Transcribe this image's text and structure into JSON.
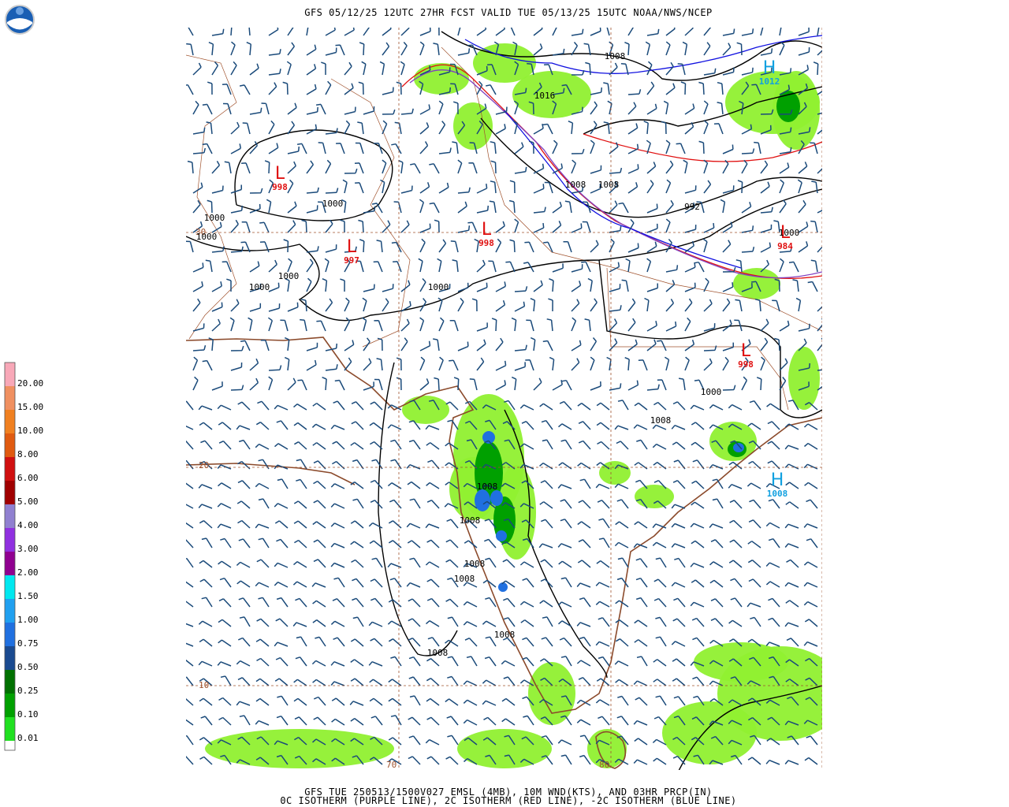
{
  "header": {
    "title": "GFS 05/12/25 12UTC 27HR FCST VALID TUE 05/13/25 15UTC NOAA/NWS/NCEP"
  },
  "footer": {
    "line1": "GFS TUE 250513/1500V027 EMSL (4MB), 10M WND(KTS), AND 03HR PRCP(IN)",
    "line2": "0C ISOTHERM (PURPLE LINE), 2C ISOTHERM (RED LINE), -2C ISOTHERM (BLUE LINE)"
  },
  "legend": {
    "items": [
      {
        "label": "20.00",
        "color": "#f8a8b8"
      },
      {
        "label": "15.00",
        "color": "#f09060"
      },
      {
        "label": "10.00",
        "color": "#f08020"
      },
      {
        "label": "8.00",
        "color": "#e05a10"
      },
      {
        "label": "6.00",
        "color": "#d01010"
      },
      {
        "label": "5.00",
        "color": "#a00000"
      },
      {
        "label": "4.00",
        "color": "#9080d0"
      },
      {
        "label": "3.00",
        "color": "#9030e0"
      },
      {
        "label": "2.00",
        "color": "#900090"
      },
      {
        "label": "1.50",
        "color": "#00e8f0"
      },
      {
        "label": "1.00",
        "color": "#20a0f0"
      },
      {
        "label": "0.75",
        "color": "#2070e0"
      },
      {
        "label": "0.50",
        "color": "#1a4a90"
      },
      {
        "label": "0.25",
        "color": "#007000"
      },
      {
        "label": "0.10",
        "color": "#00a000"
      },
      {
        "label": "0.01",
        "color": "#20e020"
      }
    ],
    "base_color": "#90f030"
  },
  "map": {
    "grid_labels": [
      "30",
      "20",
      "10",
      "70",
      "80"
    ],
    "centers": [
      {
        "symbol": "L",
        "value": "998",
        "color": "#e01010"
      },
      {
        "symbol": "L",
        "value": "997",
        "color": "#e01010"
      },
      {
        "symbol": "L",
        "value": "998",
        "color": "#e01010"
      },
      {
        "symbol": "L",
        "value": "998",
        "color": "#e01010"
      },
      {
        "symbol": "L",
        "value": "984",
        "color": "#e01010"
      },
      {
        "symbol": "H",
        "value": "1012",
        "color": "#10a0e0"
      },
      {
        "symbol": "H",
        "value": "1008",
        "color": "#10a0e0"
      }
    ],
    "isobar_labels": [
      "1008",
      "1016",
      "1008",
      "1008",
      "992",
      "1000",
      "1000",
      "1000",
      "1000",
      "1000",
      "1000",
      "1000",
      "1000",
      "1008",
      "1008",
      "1008",
      "1008",
      "1008",
      "1008",
      "1008"
    ]
  }
}
